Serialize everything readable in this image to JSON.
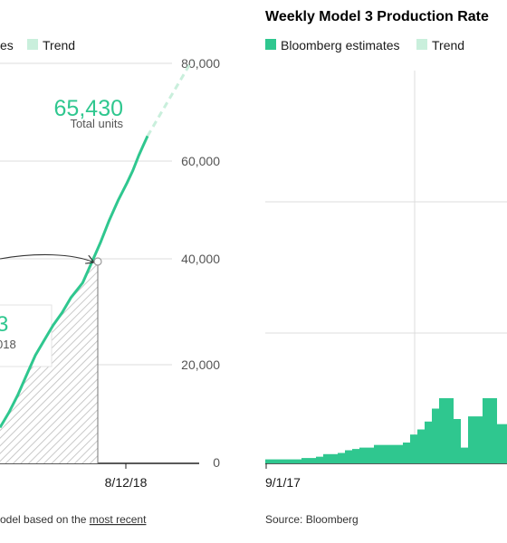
{
  "colors": {
    "accent": "#2fc78f",
    "trend": "#c9efdc",
    "grid": "#dcdcdc",
    "hatch": "#bdbdbd"
  },
  "left": {
    "legend": {
      "estimates_label": "es",
      "trend_label": "Trend"
    },
    "callout_total": {
      "value": "65,430",
      "label": "Total units"
    },
    "callout_box": {
      "value": "3",
      "label": "018"
    },
    "footer": {
      "prefix": "odel based on the ",
      "link": "most recent"
    }
  },
  "right": {
    "title": "Weekly Model 3 Production Rate",
    "legend": {
      "estimates_label": "Bloomberg estimates",
      "trend_label": "Trend"
    },
    "footer": "Source: Bloomberg"
  },
  "chart_data": [
    {
      "type": "line",
      "title": "",
      "y_ticks": [
        "80,000",
        "60,000",
        "40,000",
        "20,000",
        "0"
      ],
      "ylim": [
        0,
        80000
      ],
      "x_tick_labels": [
        "8/12/18"
      ],
      "series": [
        {
          "name": "es",
          "x_frac": [
            0,
            0.06,
            0.12,
            0.18,
            0.24,
            0.3,
            0.36,
            0.42,
            0.48,
            0.56,
            0.62,
            0.68,
            0.74,
            0.8,
            0.86,
            0.9,
            0.94,
            0.97,
            1.0
          ],
          "values": [
            7000,
            10000,
            13500,
            17500,
            21500,
            24500,
            27500,
            30000,
            33000,
            36000,
            40000,
            44000,
            48500,
            52500,
            56000,
            58500,
            61500,
            63500,
            65430
          ]
        },
        {
          "name": "Trend",
          "x_frac": [
            1.0,
            1.1,
            1.2,
            1.3
          ],
          "values": [
            65430,
            70500,
            75500,
            80500
          ]
        }
      ],
      "annotations": [
        "65,430 Total units"
      ]
    },
    {
      "type": "bar",
      "title": "Weekly Model 3 Production Rate",
      "x_tick_labels": [
        "9/1/17"
      ],
      "series": [
        {
          "name": "Bloomberg estimates",
          "values": [
            150,
            150,
            150,
            150,
            150,
            200,
            200,
            250,
            350,
            350,
            400,
            500,
            550,
            600,
            600,
            700,
            700,
            700,
            700,
            800,
            1100,
            1300,
            1600,
            2100,
            2500,
            2500,
            1700,
            600,
            1800,
            1800,
            2500,
            2500,
            1500,
            1500
          ]
        }
      ]
    }
  ]
}
